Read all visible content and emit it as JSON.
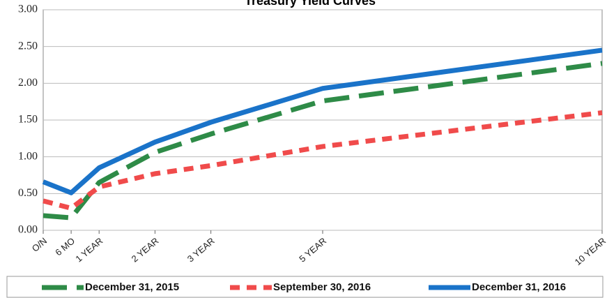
{
  "chart_data": {
    "type": "line",
    "title": "Treasury Yield Curves",
    "x": [
      0,
      0.5,
      1,
      2,
      3,
      5,
      10
    ],
    "xlim": [
      0,
      10
    ],
    "xticks": [
      {
        "value": 0,
        "label": "O/N"
      },
      {
        "value": 0.5,
        "label": "6 MO"
      },
      {
        "value": 1,
        "label": "1 YEAR"
      },
      {
        "value": 2,
        "label": "2 YEAR"
      },
      {
        "value": 3,
        "label": "3 YEAR"
      },
      {
        "value": 5,
        "label": "5 YEAR"
      },
      {
        "value": 10,
        "label": "10 YEAR"
      }
    ],
    "ylim": [
      0,
      3
    ],
    "yticks": [
      {
        "value": 0,
        "label": "0.00"
      },
      {
        "value": 0.5,
        "label": "0.50"
      },
      {
        "value": 1,
        "label": "1.00"
      },
      {
        "value": 1.5,
        "label": "1.50"
      },
      {
        "value": 2,
        "label": "2.00"
      },
      {
        "value": 2.5,
        "label": "2.50"
      },
      {
        "value": 3,
        "label": "3.00"
      }
    ],
    "grid": true,
    "legend": "bottom",
    "series": [
      {
        "name": "December 31, 2015",
        "color": "#2e8b47",
        "dash": "long-dash",
        "values": [
          0.2,
          0.17,
          0.65,
          1.06,
          1.31,
          1.76,
          2.27
        ]
      },
      {
        "name": "September 30, 2016",
        "color": "#f04b4b",
        "dash": "dash",
        "values": [
          0.4,
          0.3,
          0.59,
          0.77,
          0.88,
          1.14,
          1.6
        ]
      },
      {
        "name": "December 31, 2016",
        "color": "#1a73c9",
        "dash": "solid",
        "values": [
          0.66,
          0.51,
          0.85,
          1.2,
          1.47,
          1.93,
          2.45
        ]
      }
    ]
  }
}
